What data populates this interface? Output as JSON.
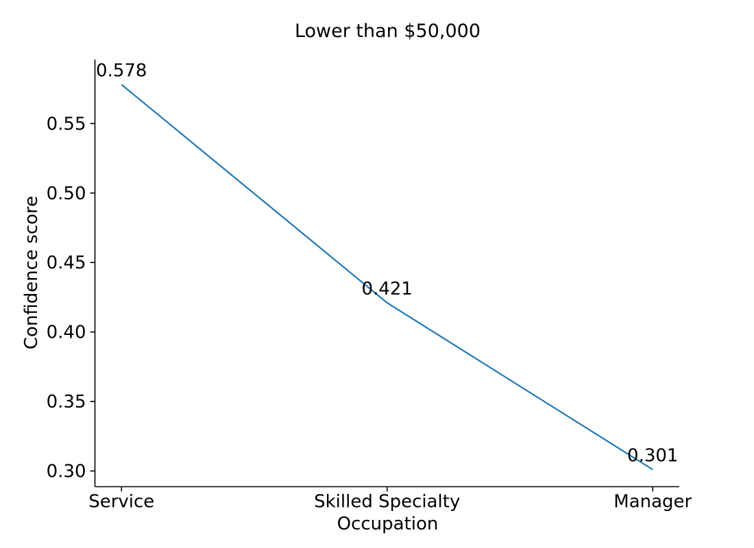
{
  "background_color": "#ffffff",
  "chart_data": {
    "type": "line",
    "title": "Lower than $50,000",
    "xlabel": "Occupation",
    "ylabel": "Confidence score",
    "categories": [
      "Service",
      "Skilled Specialty",
      "Manager"
    ],
    "values": [
      0.578,
      0.421,
      0.301
    ],
    "point_labels": [
      "0.578",
      "0.421",
      "0.301"
    ],
    "ytick_values": [
      0.3,
      0.35,
      0.4,
      0.45,
      0.5,
      0.55
    ],
    "ytick_labels": [
      "0.30",
      "0.35",
      "0.40",
      "0.45",
      "0.50",
      "0.55"
    ],
    "ylim": [
      0.2887,
      0.596
    ],
    "xlim": [
      -0.1,
      2.1
    ],
    "line_color": "#1f77b4",
    "axis_color": "#000000",
    "text_color": "#000000",
    "grid": false,
    "legend": null,
    "spines": [
      "left",
      "bottom"
    ]
  }
}
